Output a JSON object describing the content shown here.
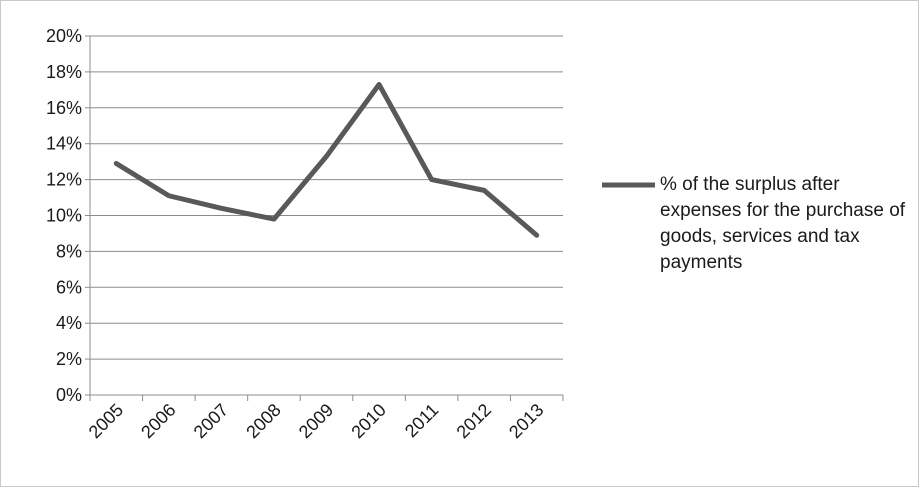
{
  "chart_data": {
    "type": "line",
    "categories": [
      "2005",
      "2006",
      "2007",
      "2008",
      "2009",
      "2010",
      "2011",
      "2012",
      "2013"
    ],
    "series": [
      {
        "name": "% of the surplus after expenses for the purchase of goods, services and tax payments",
        "values": [
          0.129,
          0.111,
          0.104,
          0.098,
          0.133,
          0.173,
          0.12,
          0.114,
          0.089
        ],
        "color": "#595959"
      }
    ],
    "ylim": [
      0,
      0.2
    ],
    "yticks": [
      0,
      0.02,
      0.04,
      0.06,
      0.08,
      0.1,
      0.12,
      0.14,
      0.16,
      0.18,
      0.2
    ],
    "ytick_labels": [
      "0%",
      "2%",
      "4%",
      "6%",
      "8%",
      "10%",
      "12%",
      "14%",
      "16%",
      "18%",
      "20%"
    ],
    "grid": true,
    "legend_position": "right",
    "title": "",
    "xlabel": "",
    "ylabel": ""
  }
}
